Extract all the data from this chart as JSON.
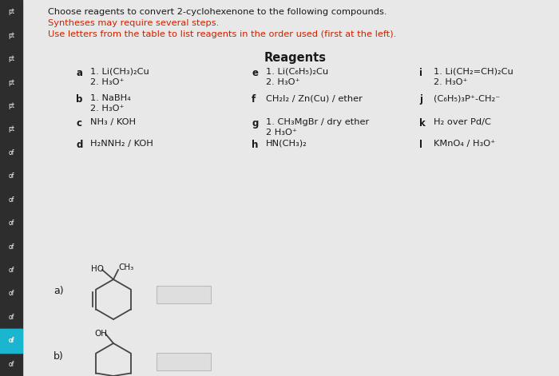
{
  "title_line1": "Choose reagents to convert 2-cyclohexenone to the following compounds.",
  "title_line2": "Syntheses may require several steps.",
  "title_line3": "Use letters from the table to list reagents in the order used (first at the left).",
  "reagents_title": "Reagents",
  "reagents": [
    {
      "letter": "a",
      "text1": "1. Li(CH₃)₂Cu",
      "text2": "2. H₃O⁺"
    },
    {
      "letter": "e",
      "text1": "1. Li(C₆H₅)₂Cu",
      "text2": "2. H₃O⁺"
    },
    {
      "letter": "i",
      "text1": "1. Li(CH₂=CH)₂Cu",
      "text2": "2. H₃O⁺"
    },
    {
      "letter": "b",
      "text1": "1. NaBH₄",
      "text2": "2. H₃O⁺"
    },
    {
      "letter": "f",
      "text1": "CH₂I₂ / Zn(Cu) / ether",
      "text2": ""
    },
    {
      "letter": "j",
      "text1": "(C₆H₅)₃P⁺-CH₂⁻",
      "text2": ""
    },
    {
      "letter": "c",
      "text1": "NH₃ / KOH",
      "text2": ""
    },
    {
      "letter": "g",
      "text1": "1. CH₃MgBr / dry ether",
      "text2": "2 H₃O⁺"
    },
    {
      "letter": "k",
      "text1": "H₂ over Pd/C",
      "text2": ""
    },
    {
      "letter": "d",
      "text1": "H₂NNH₂ / KOH",
      "text2": ""
    },
    {
      "letter": "h",
      "text1": "HN(CH₃)₂",
      "text2": ""
    },
    {
      "letter": "l",
      "text1": "KMnO₄ / H₃O⁺",
      "text2": ""
    }
  ],
  "sidebar_labels": [
    "pt",
    "pt",
    "pt",
    "pt",
    "pt",
    "pt",
    "of",
    "of",
    "of",
    "of",
    "of",
    "of",
    "of",
    "of",
    "of",
    "of"
  ],
  "sidebar_colors": [
    "#2d2d2d",
    "#2d2d2d",
    "#2d2d2d",
    "#2d2d2d",
    "#2d2d2d",
    "#2d2d2d",
    "#2d2d2d",
    "#2d2d2d",
    "#2d2d2d",
    "#2d2d2d",
    "#2d2d2d",
    "#2d2d2d",
    "#2d2d2d",
    "#2d2d2d",
    "#1ab5ce",
    "#2d2d2d"
  ],
  "background_color": "#e8e8e8",
  "text_color": "#1a1a1a",
  "red_color": "#cc2200",
  "answer_box_facecolor": "#dedede",
  "answer_box_edgecolor": "#bbbbbb",
  "molecule_color": "#444444"
}
